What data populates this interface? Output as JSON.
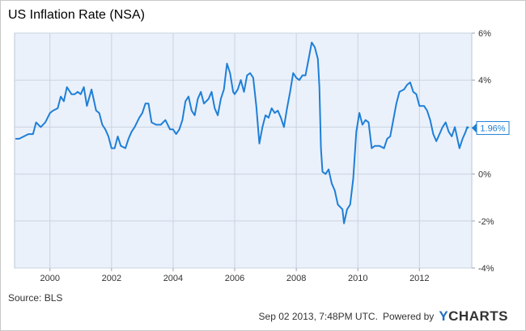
{
  "chart_data": {
    "type": "line",
    "title": "US Inflation Rate (NSA)",
    "xlabel": "",
    "ylabel": "",
    "xlim": [
      1998.85,
      2013.7
    ],
    "ylim": [
      -4,
      6
    ],
    "x_ticks": [
      2000,
      2002,
      2004,
      2006,
      2008,
      2010,
      2012
    ],
    "x_tick_labels": [
      "2000",
      "2002",
      "2004",
      "2006",
      "2008",
      "2010",
      "2012"
    ],
    "y_ticks": [
      -4,
      -2,
      0,
      2,
      4,
      6
    ],
    "y_tick_labels": [
      "-4%",
      "-2%",
      "0%",
      "2%",
      "4%",
      "6%"
    ],
    "grid": true,
    "line_color": "#1f7fd6",
    "last_value_label": "1.96%",
    "series": [
      {
        "values": [
          [
            1998.88,
            1.5
          ],
          [
            1999.0,
            1.5
          ],
          [
            1999.15,
            1.6
          ],
          [
            1999.3,
            1.7
          ],
          [
            1999.45,
            1.7
          ],
          [
            1999.55,
            2.2
          ],
          [
            1999.7,
            2.0
          ],
          [
            1999.85,
            2.2
          ],
          [
            2000.0,
            2.6
          ],
          [
            2000.1,
            2.7
          ],
          [
            2000.25,
            2.8
          ],
          [
            2000.35,
            3.3
          ],
          [
            2000.45,
            3.1
          ],
          [
            2000.55,
            3.7
          ],
          [
            2000.7,
            3.4
          ],
          [
            2000.8,
            3.4
          ],
          [
            2000.9,
            3.5
          ],
          [
            2001.0,
            3.4
          ],
          [
            2001.1,
            3.7
          ],
          [
            2001.2,
            2.9
          ],
          [
            2001.35,
            3.6
          ],
          [
            2001.5,
            2.7
          ],
          [
            2001.6,
            2.6
          ],
          [
            2001.7,
            2.1
          ],
          [
            2001.8,
            1.9
          ],
          [
            2001.9,
            1.6
          ],
          [
            2002.0,
            1.1
          ],
          [
            2002.1,
            1.1
          ],
          [
            2002.2,
            1.6
          ],
          [
            2002.3,
            1.2
          ],
          [
            2002.45,
            1.1
          ],
          [
            2002.55,
            1.5
          ],
          [
            2002.65,
            1.8
          ],
          [
            2002.75,
            2.0
          ],
          [
            2002.9,
            2.4
          ],
          [
            2003.0,
            2.6
          ],
          [
            2003.1,
            3.0
          ],
          [
            2003.2,
            3.0
          ],
          [
            2003.3,
            2.2
          ],
          [
            2003.45,
            2.1
          ],
          [
            2003.6,
            2.1
          ],
          [
            2003.75,
            2.3
          ],
          [
            2003.9,
            1.9
          ],
          [
            2004.0,
            1.9
          ],
          [
            2004.1,
            1.7
          ],
          [
            2004.2,
            1.9
          ],
          [
            2004.3,
            2.3
          ],
          [
            2004.4,
            3.1
          ],
          [
            2004.5,
            3.3
          ],
          [
            2004.6,
            2.7
          ],
          [
            2004.7,
            2.5
          ],
          [
            2004.8,
            3.2
          ],
          [
            2004.9,
            3.5
          ],
          [
            2005.0,
            3.0
          ],
          [
            2005.15,
            3.2
          ],
          [
            2005.25,
            3.5
          ],
          [
            2005.35,
            2.8
          ],
          [
            2005.45,
            2.5
          ],
          [
            2005.55,
            3.2
          ],
          [
            2005.65,
            3.6
          ],
          [
            2005.75,
            4.7
          ],
          [
            2005.85,
            4.3
          ],
          [
            2005.95,
            3.5
          ],
          [
            2006.0,
            3.4
          ],
          [
            2006.1,
            3.6
          ],
          [
            2006.2,
            4.0
          ],
          [
            2006.3,
            3.5
          ],
          [
            2006.4,
            4.2
          ],
          [
            2006.5,
            4.3
          ],
          [
            2006.6,
            4.1
          ],
          [
            2006.7,
            2.9
          ],
          [
            2006.75,
            2.1
          ],
          [
            2006.8,
            1.3
          ],
          [
            2006.9,
            2.0
          ],
          [
            2007.0,
            2.5
          ],
          [
            2007.1,
            2.4
          ],
          [
            2007.2,
            2.8
          ],
          [
            2007.3,
            2.6
          ],
          [
            2007.4,
            2.7
          ],
          [
            2007.5,
            2.4
          ],
          [
            2007.6,
            2.0
          ],
          [
            2007.7,
            2.8
          ],
          [
            2007.8,
            3.5
          ],
          [
            2007.9,
            4.3
          ],
          [
            2008.0,
            4.1
          ],
          [
            2008.1,
            4.0
          ],
          [
            2008.2,
            4.2
          ],
          [
            2008.3,
            4.2
          ],
          [
            2008.4,
            4.9
          ],
          [
            2008.5,
            5.6
          ],
          [
            2008.6,
            5.4
          ],
          [
            2008.7,
            4.9
          ],
          [
            2008.75,
            3.7
          ],
          [
            2008.8,
            1.1
          ],
          [
            2008.85,
            0.1
          ],
          [
            2008.95,
            0.0
          ],
          [
            2009.05,
            0.2
          ],
          [
            2009.15,
            -0.4
          ],
          [
            2009.25,
            -0.7
          ],
          [
            2009.35,
            -1.3
          ],
          [
            2009.5,
            -1.5
          ],
          [
            2009.55,
            -2.1
          ],
          [
            2009.65,
            -1.5
          ],
          [
            2009.75,
            -1.3
          ],
          [
            2009.85,
            -0.2
          ],
          [
            2009.95,
            1.8
          ],
          [
            2010.05,
            2.6
          ],
          [
            2010.15,
            2.1
          ],
          [
            2010.25,
            2.3
          ],
          [
            2010.35,
            2.2
          ],
          [
            2010.45,
            1.1
          ],
          [
            2010.55,
            1.2
          ],
          [
            2010.7,
            1.2
          ],
          [
            2010.85,
            1.1
          ],
          [
            2010.95,
            1.5
          ],
          [
            2011.05,
            1.6
          ],
          [
            2011.15,
            2.3
          ],
          [
            2011.25,
            3.0
          ],
          [
            2011.35,
            3.5
          ],
          [
            2011.5,
            3.6
          ],
          [
            2011.6,
            3.8
          ],
          [
            2011.7,
            3.9
          ],
          [
            2011.8,
            3.5
          ],
          [
            2011.9,
            3.4
          ],
          [
            2012.0,
            2.9
          ],
          [
            2012.15,
            2.9
          ],
          [
            2012.25,
            2.7
          ],
          [
            2012.35,
            2.3
          ],
          [
            2012.45,
            1.7
          ],
          [
            2012.55,
            1.4
          ],
          [
            2012.65,
            1.7
          ],
          [
            2012.75,
            2.0
          ],
          [
            2012.85,
            2.2
          ],
          [
            2012.95,
            1.8
          ],
          [
            2013.05,
            1.6
          ],
          [
            2013.15,
            2.0
          ],
          [
            2013.25,
            1.4
          ],
          [
            2013.3,
            1.1
          ],
          [
            2013.4,
            1.5
          ],
          [
            2013.5,
            1.8
          ],
          [
            2013.55,
            2.0
          ],
          [
            2013.6,
            1.96
          ]
        ]
      }
    ]
  },
  "footer": {
    "source": "Source: BLS",
    "timestamp": "Sep 02 2013, 7:48PM UTC.",
    "powered_by": "Powered by",
    "logo_y": "Y",
    "logo_rest": "CHARTS"
  }
}
